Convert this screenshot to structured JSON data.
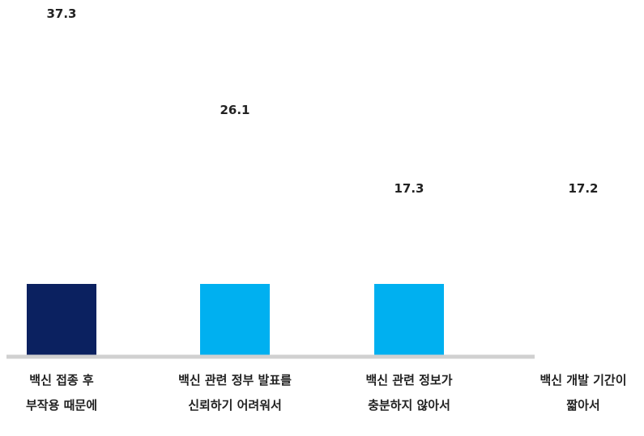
{
  "chart_data": {
    "type": "bar",
    "categories": [
      [
        "백신 접종 후",
        "부작용 때문에"
      ],
      [
        "백신 관련 정부 발표를",
        "신뢰하기 어려워서"
      ],
      [
        "백신 관련 정보가",
        "충분하지 않아서"
      ],
      [
        "백신 개발 기간이",
        "짧아서"
      ]
    ],
    "values": [
      37.3,
      26.1,
      17.3,
      17.2
    ],
    "value_labels": [
      "37.3",
      "26.1",
      "17.3",
      "17.2"
    ],
    "colors": [
      "#0b2160",
      "#00b0f0",
      "#00b0f0",
      "#00b0f0"
    ],
    "axis_color": "#d0d0d0",
    "title": "",
    "xlabel": "",
    "ylabel": "",
    "grid": false,
    "legend": "none"
  }
}
